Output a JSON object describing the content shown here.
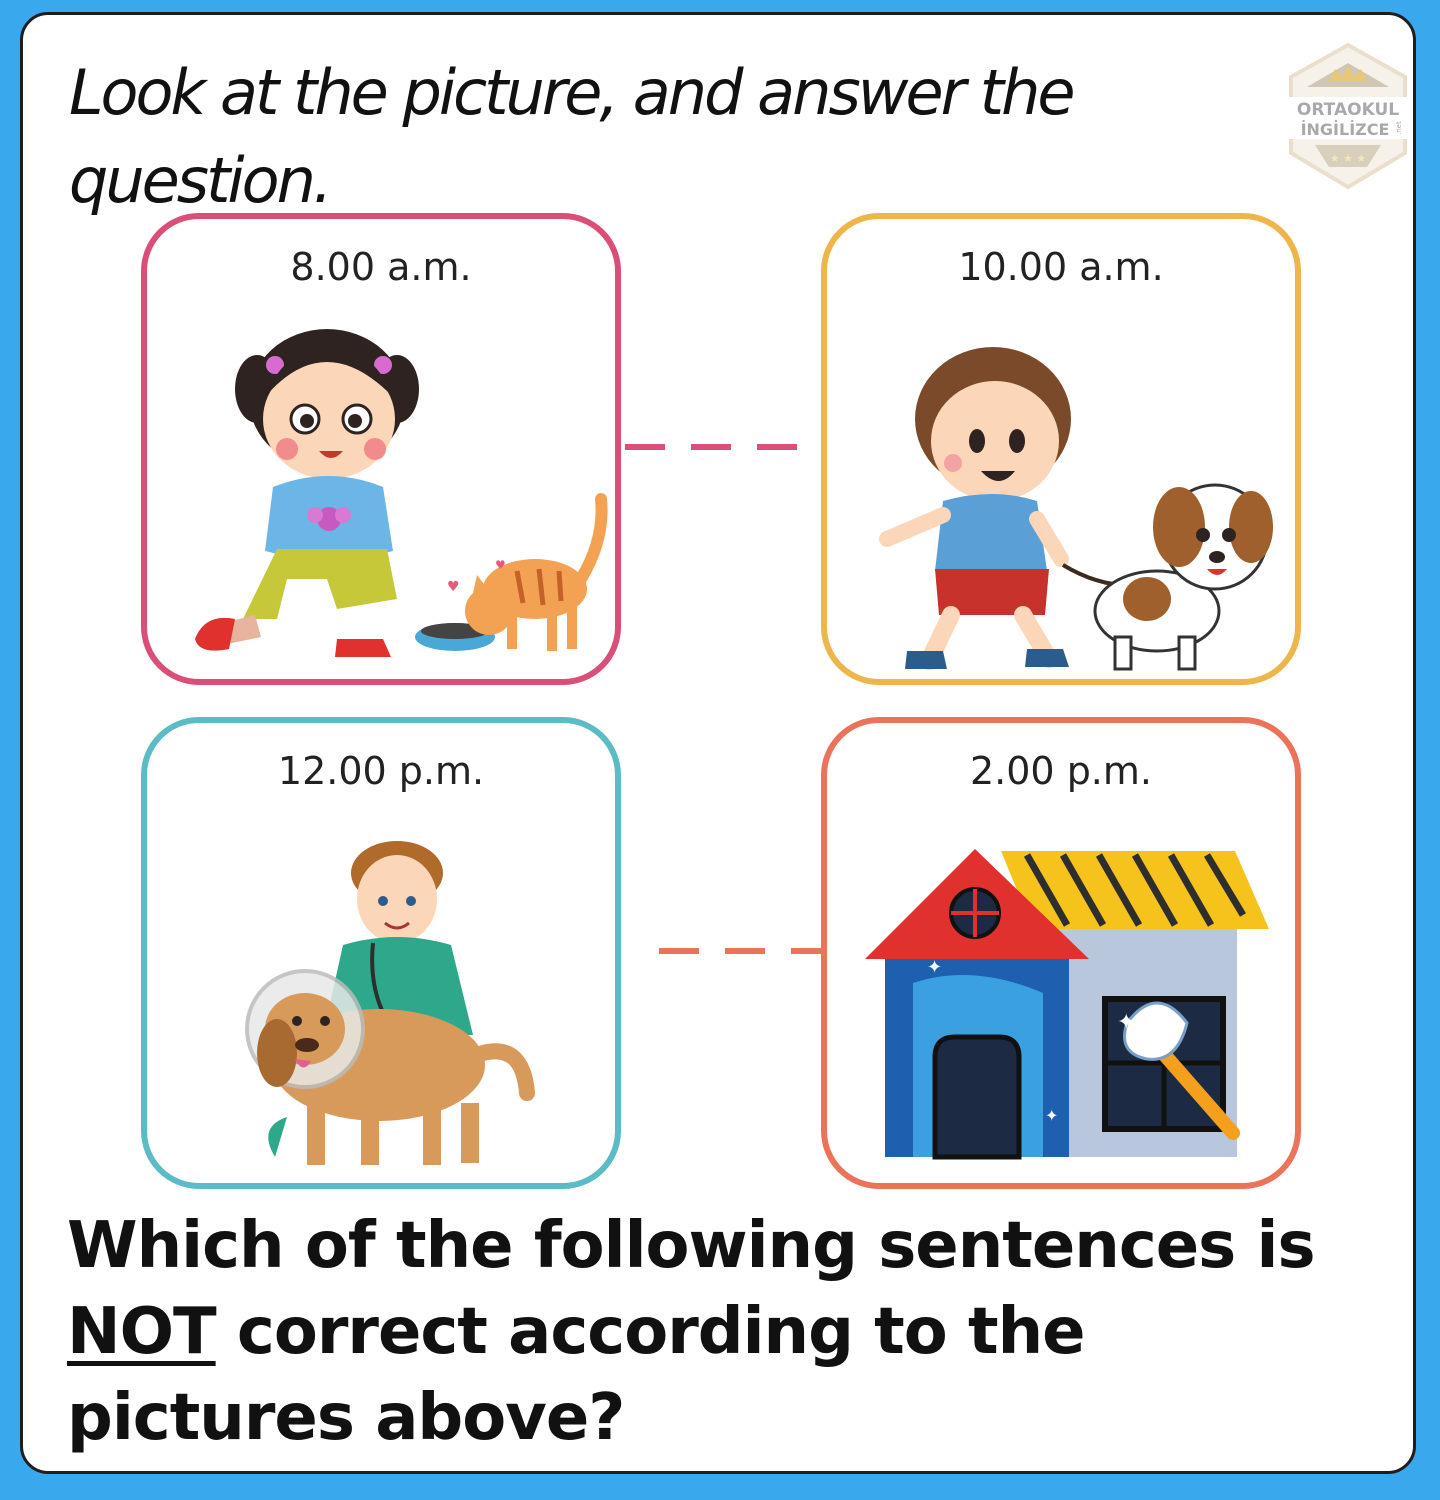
{
  "instruction": "Look at the picture, and answer the question.",
  "logo": {
    "line1": "ORTAOKUL",
    "line2": "İNGİLİZCE",
    "suffix": ".net"
  },
  "panels": [
    {
      "time": "8.00 a.m.",
      "scene": "girl-feeding-cat",
      "border_color": "#d94f77"
    },
    {
      "time": "10.00 a.m.",
      "scene": "boy-walking-dog",
      "border_color": "#eeb54a"
    },
    {
      "time": "12.00 p.m.",
      "scene": "vet-examining-dog",
      "border_color": "#5bbcc5"
    },
    {
      "time": "2.00 p.m.",
      "scene": "cleaning-house",
      "border_color": "#ea735a"
    }
  ],
  "question": {
    "before": "Which of the following sentences is ",
    "emphasis": "NOT",
    "after": " correct according to the pictures above?"
  },
  "colors": {
    "background": "#3aa8ec",
    "card": "#ffffff"
  }
}
